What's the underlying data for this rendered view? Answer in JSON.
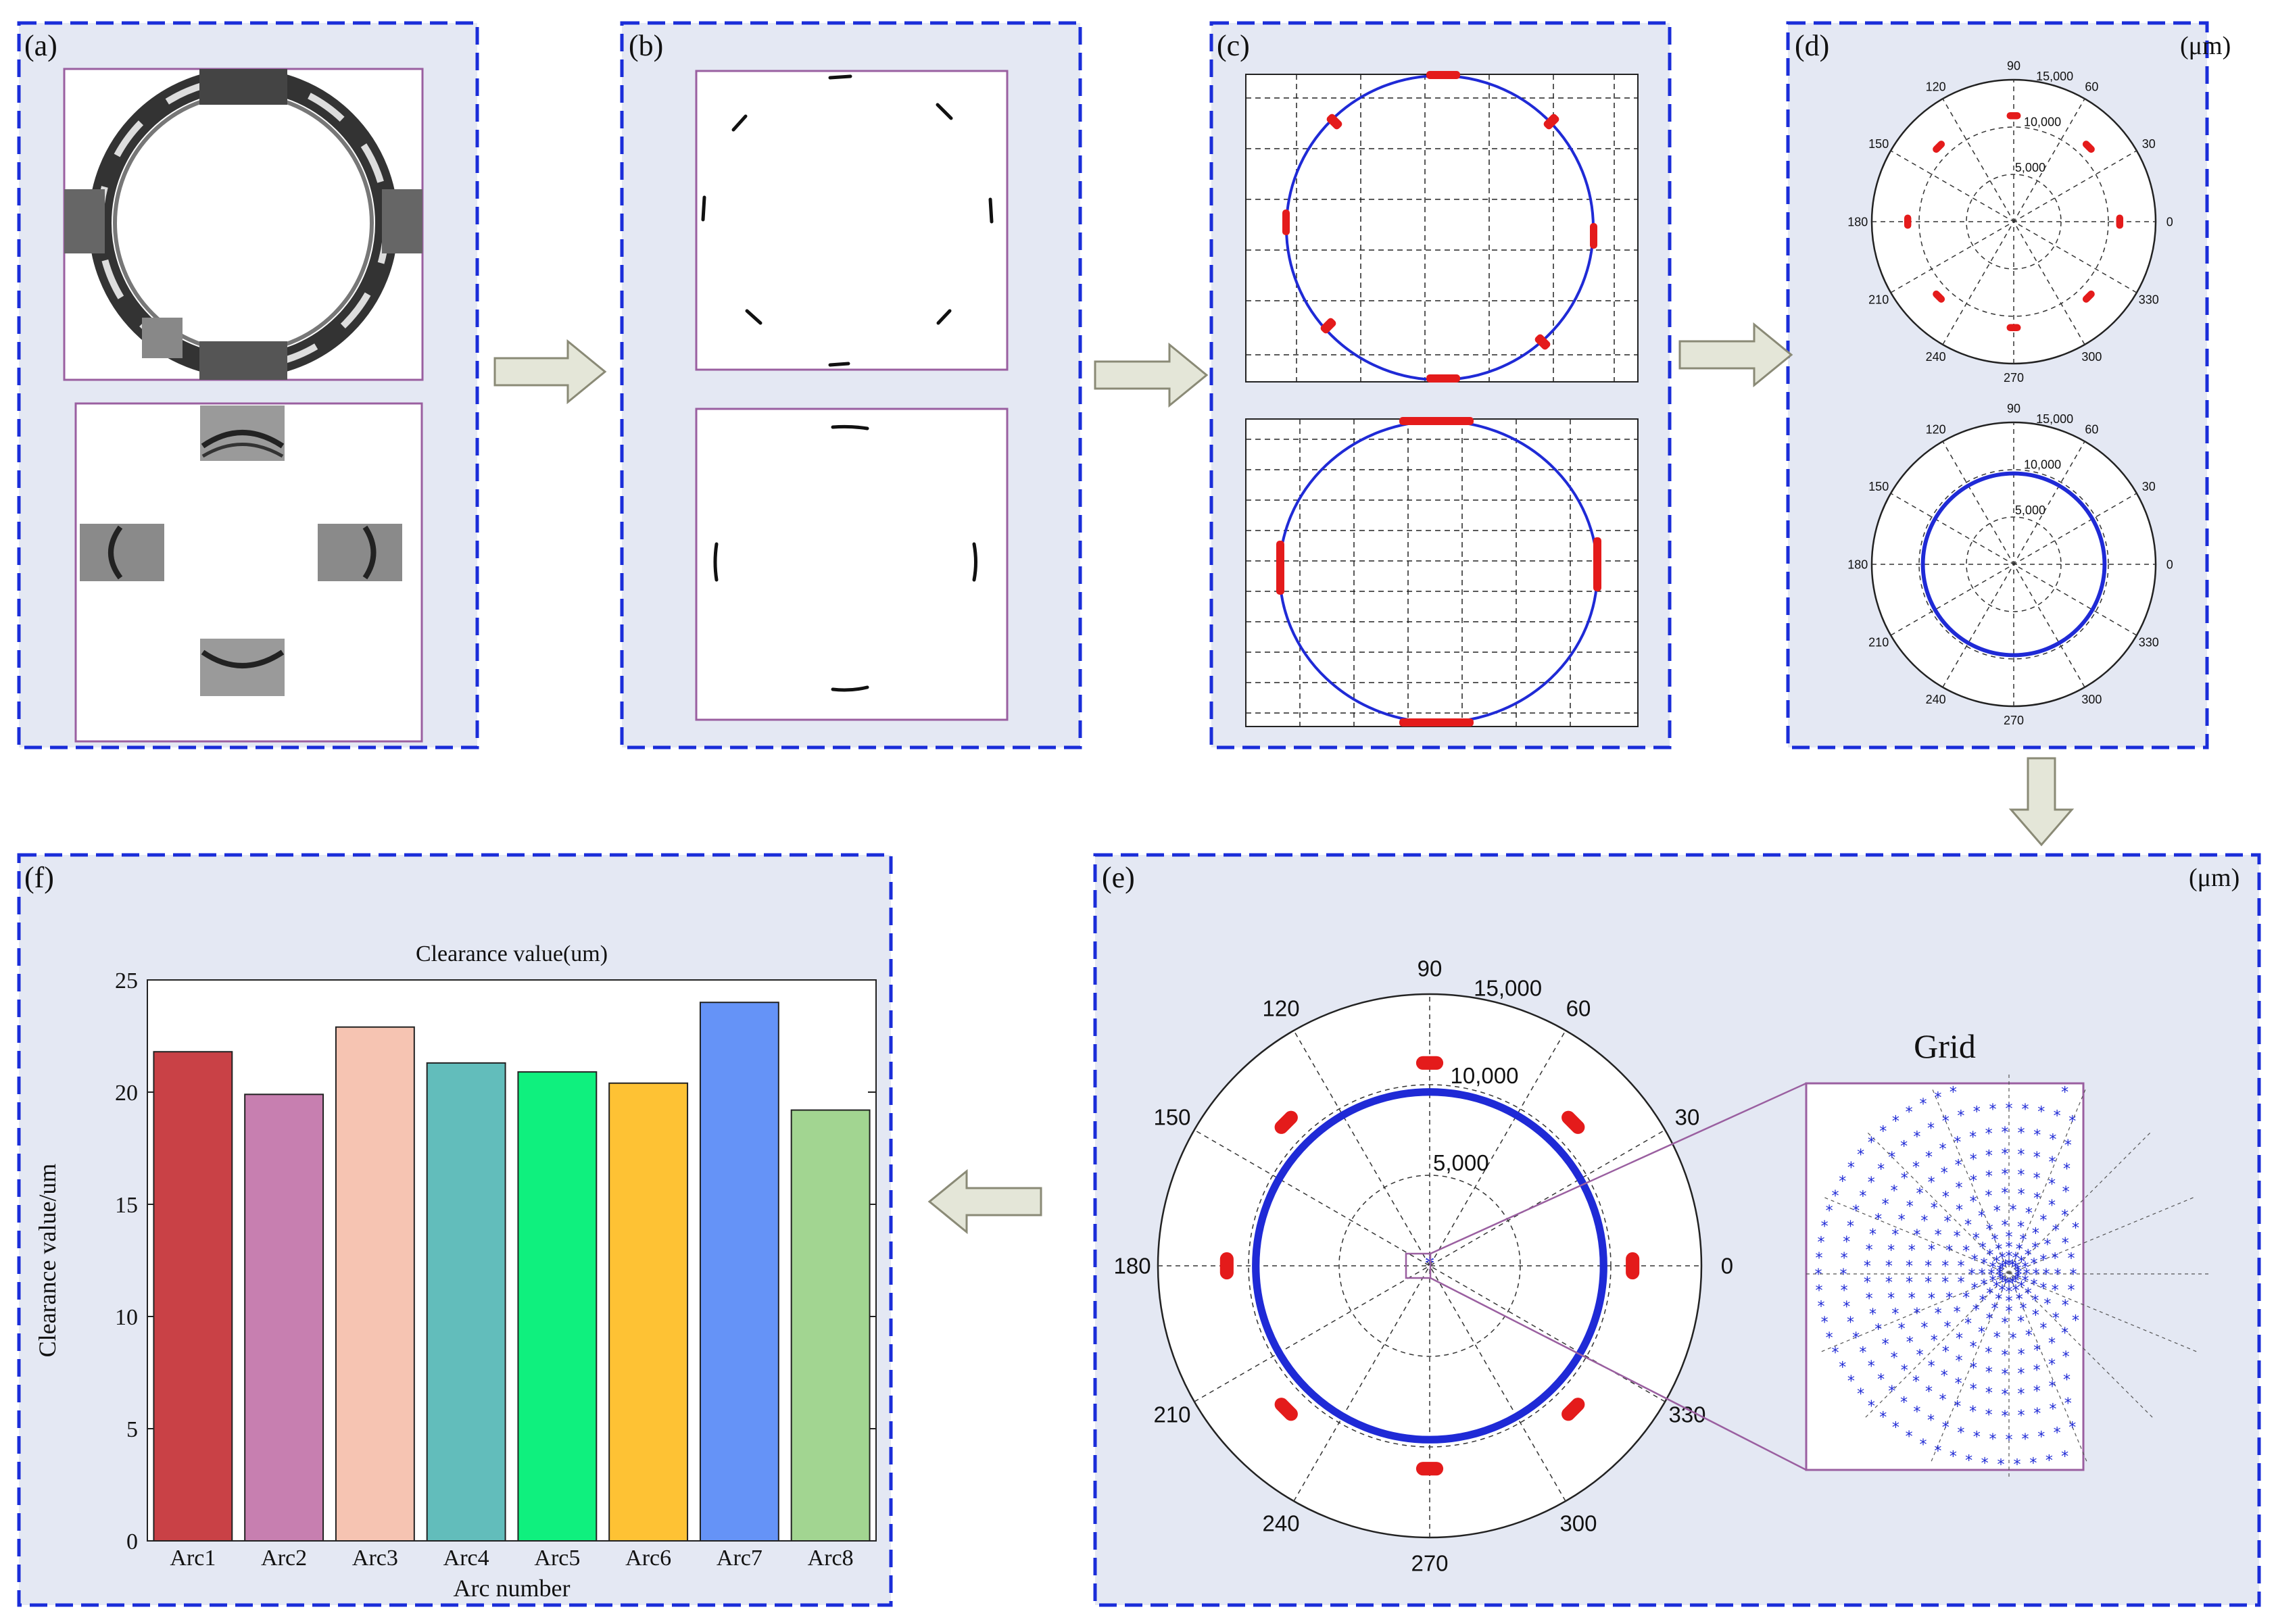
{
  "panels": {
    "a": {
      "label": "(a)"
    },
    "b": {
      "label": "(b)"
    },
    "c": {
      "label": "(c)"
    },
    "d": {
      "label": "(d)",
      "unit": "(μm)"
    },
    "e": {
      "label": "(e)",
      "unit": "(μm)",
      "inset_title": "Grid"
    },
    "f": {
      "label": "(f)"
    }
  },
  "polar": {
    "angle_labels": [
      "0",
      "30",
      "60",
      "90",
      "120",
      "150",
      "180",
      "210",
      "240",
      "270",
      "300",
      "330"
    ],
    "radial_labels": [
      "5,000",
      "10,000",
      "15,000"
    ],
    "rmax": 15000,
    "fitted_radius": 9600,
    "arc_radius": 11200,
    "arc_angles_deg": [
      0,
      45,
      90,
      135,
      180,
      225,
      270,
      315
    ]
  },
  "chart_data": {
    "type": "bar",
    "title": "Clearance value(um)",
    "xlabel": "Arc number",
    "ylabel": "Clearance value/um",
    "categories": [
      "Arc1",
      "Arc2",
      "Arc3",
      "Arc4",
      "Arc5",
      "Arc6",
      "Arc7",
      "Arc8"
    ],
    "values": [
      21.8,
      19.9,
      22.9,
      21.3,
      20.9,
      20.4,
      24.0,
      19.2
    ],
    "colors": [
      "#c94146",
      "#c77fb0",
      "#f6c4b2",
      "#62bdbb",
      "#0ff07e",
      "#fec234",
      "#6593f7",
      "#a2d591"
    ],
    "ylim": [
      0,
      25
    ],
    "yticks": [
      0,
      5,
      10,
      15,
      20,
      25
    ],
    "grid": false
  },
  "colors": {
    "panel_bg": "#e4e8f3",
    "panel_border": "#1a2dd9",
    "arrow_fill": "#e4e6d8",
    "fit_blue": "#1f2ad6",
    "arc_red": "#e41b1b",
    "inset_frame": "#9a5fa0"
  }
}
